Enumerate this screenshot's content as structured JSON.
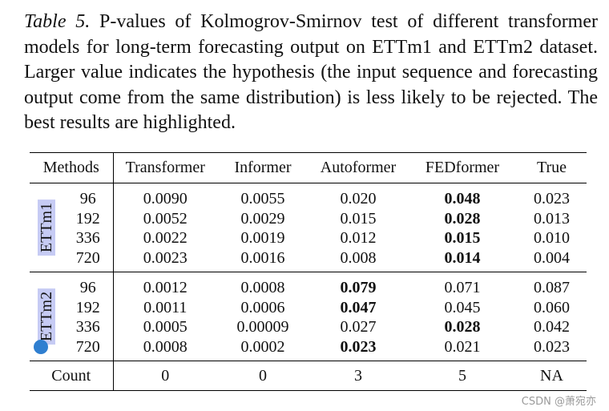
{
  "caption": {
    "label": "Table 5.",
    "text": "P-values of Kolmogrov-Smirnov test of different transformer models for long-term forecasting output on ETTm1 and ETTm2 dataset. Larger value indicates the hypothesis (the input sequence and forecasting output come from the same distribution) is less likely to be rejected. The best results are highlighted."
  },
  "table": {
    "headers": [
      "Methods",
      "Transformer",
      "Informer",
      "Autoformer",
      "FEDformer",
      "True"
    ],
    "groups": [
      {
        "dataset": "ETTm1",
        "rows": [
          {
            "horizon": "96",
            "values": [
              "0.0090",
              "0.0055",
              "0.020",
              "0.048",
              "0.023"
            ],
            "best": 3
          },
          {
            "horizon": "192",
            "values": [
              "0.0052",
              "0.0029",
              "0.015",
              "0.028",
              "0.013"
            ],
            "best": 3
          },
          {
            "horizon": "336",
            "values": [
              "0.0022",
              "0.0019",
              "0.012",
              "0.015",
              "0.010"
            ],
            "best": 3
          },
          {
            "horizon": "720",
            "values": [
              "0.0023",
              "0.0016",
              "0.008",
              "0.014",
              "0.004"
            ],
            "best": 3
          }
        ]
      },
      {
        "dataset": "ETTm2",
        "rows": [
          {
            "horizon": "96",
            "values": [
              "0.0012",
              "0.0008",
              "0.079",
              "0.071",
              "0.087"
            ],
            "best": 2
          },
          {
            "horizon": "192",
            "values": [
              "0.0011",
              "0.0006",
              "0.047",
              "0.045",
              "0.060"
            ],
            "best": 2
          },
          {
            "horizon": "336",
            "values": [
              "0.0005",
              "0.00009",
              "0.027",
              "0.028",
              "0.042"
            ],
            "best": 3
          },
          {
            "horizon": "720",
            "values": [
              "0.0008",
              "0.0002",
              "0.023",
              "0.021",
              "0.023"
            ],
            "best": 2
          }
        ]
      }
    ],
    "count": {
      "label": "Count",
      "values": [
        "0",
        "0",
        "3",
        "5",
        "NA"
      ]
    }
  },
  "watermark": "CSDN @萧宛亦"
}
